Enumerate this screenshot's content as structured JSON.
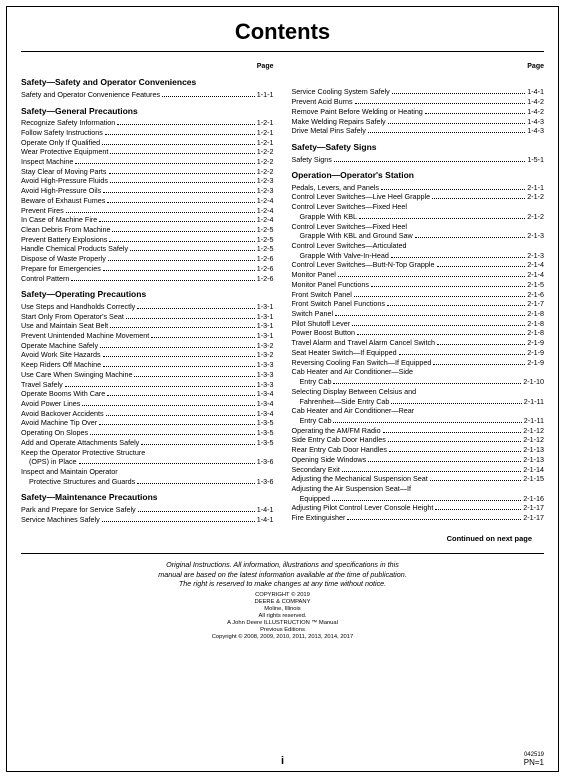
{
  "title": "Contents",
  "pageHeaderLabel": "Page",
  "continuedNote": "Continued on next page",
  "legal": [
    "Original Instructions. All information, illustrations and specifications in this",
    "manual are based on the latest information available at the time of publication.",
    "The right is reserved to make changes at any time without notice."
  ],
  "copyright": [
    "COPYRIGHT © 2019",
    "DEERE & COMPANY",
    "Moline, Illinois",
    "All rights reserved.",
    "A John Deere ILLUSTRUCTION ™ Manual",
    "Previous Editions",
    "Copyright © 2008, 2009, 2010, 2011, 2013, 2014, 2017"
  ],
  "footer": {
    "center": "i",
    "right_top": "042519",
    "right_pn": "PN=1"
  },
  "leftColumn": [
    {
      "type": "head",
      "text": "Safety—Safety and Operator Conveniences"
    },
    {
      "type": "entry",
      "label": "Safety and Operator Convenience Features",
      "page": "1-1-1"
    },
    {
      "type": "head",
      "text": "Safety—General Precautions"
    },
    {
      "type": "entry",
      "label": "Recognize Safety Information",
      "page": "1-2-1"
    },
    {
      "type": "entry",
      "label": "Follow Safety Instructions",
      "page": "1-2-1"
    },
    {
      "type": "entry",
      "label": "Operate Only If Qualified",
      "page": "1-2-1"
    },
    {
      "type": "entry",
      "label": "Wear Protective Equipment",
      "page": "1-2-2"
    },
    {
      "type": "entry",
      "label": "Inspect Machine",
      "page": "1-2-2"
    },
    {
      "type": "entry",
      "label": "Stay Clear of Moving Parts",
      "page": "1-2-2"
    },
    {
      "type": "entry",
      "label": "Avoid High-Pressure Fluids",
      "page": "1-2-3"
    },
    {
      "type": "entry",
      "label": "Avoid High-Pressure Oils",
      "page": "1-2-3"
    },
    {
      "type": "entry",
      "label": "Beware of Exhaust Fumes",
      "page": "1-2-4"
    },
    {
      "type": "entry",
      "label": "Prevent Fires",
      "page": "1-2-4"
    },
    {
      "type": "entry",
      "label": "In Case of Machine Fire",
      "page": "1-2-4"
    },
    {
      "type": "entry",
      "label": "Clean Debris From Machine",
      "page": "1-2-5"
    },
    {
      "type": "entry",
      "label": "Prevent Battery Explosions",
      "page": "1-2-5"
    },
    {
      "type": "entry",
      "label": "Handle Chemical Products Safely",
      "page": "1-2-5"
    },
    {
      "type": "entry",
      "label": "Dispose of Waste Properly",
      "page": "1-2-6"
    },
    {
      "type": "entry",
      "label": "Prepare for Emergencies",
      "page": "1-2-6"
    },
    {
      "type": "entry",
      "label": "Control Pattern",
      "page": "1-2-6"
    },
    {
      "type": "head",
      "text": "Safety—Operating Precautions"
    },
    {
      "type": "entry",
      "label": "Use Steps and Handholds Correctly",
      "page": "1-3-1"
    },
    {
      "type": "entry",
      "label": "Start Only From Operator's Seat",
      "page": "1-3-1"
    },
    {
      "type": "entry",
      "label": "Use and Maintain Seat Belt",
      "page": "1-3-1"
    },
    {
      "type": "entry",
      "label": "Prevent Unintended Machine Movement",
      "page": "1-3-1"
    },
    {
      "type": "entry",
      "label": "Operate Machine Safely",
      "page": "1-3-2"
    },
    {
      "type": "entry",
      "label": "Avoid Work Site Hazards",
      "page": "1-3-2"
    },
    {
      "type": "entry",
      "label": "Keep Riders Off Machine",
      "page": "1-3-3"
    },
    {
      "type": "entry",
      "label": "Use Care When Swinging Machine",
      "page": "1-3-3"
    },
    {
      "type": "entry",
      "label": "Travel Safely",
      "page": "1-3-3"
    },
    {
      "type": "entry",
      "label": "Operate Booms With Care",
      "page": "1-3-4"
    },
    {
      "type": "entry",
      "label": "Avoid Power Lines",
      "page": "1-3-4"
    },
    {
      "type": "entry",
      "label": "Avoid Backover Accidents",
      "page": "1-3-4"
    },
    {
      "type": "entry",
      "label": "Avoid Machine Tip Over",
      "page": "1-3-5"
    },
    {
      "type": "entry",
      "label": "Operating On Slopes",
      "page": "1-3-5"
    },
    {
      "type": "entry",
      "label": "Add and Operate Attachments Safely",
      "page": "1-3-5"
    },
    {
      "type": "plain",
      "label": "Keep the Operator Protective Structure"
    },
    {
      "type": "entry",
      "indent": true,
      "label": "(OPS) in Place",
      "page": "1-3-6"
    },
    {
      "type": "plain",
      "label": "Inspect and Maintain Operator"
    },
    {
      "type": "entry",
      "indent": true,
      "label": "Protective Structures and Guards",
      "page": "1-3-6"
    },
    {
      "type": "head",
      "text": "Safety—Maintenance Precautions"
    },
    {
      "type": "entry",
      "label": "Park and Prepare for Service Safely",
      "page": "1-4-1"
    },
    {
      "type": "entry",
      "label": "Service Machines Safely",
      "page": "1-4-1"
    }
  ],
  "rightColumn": [
    {
      "type": "spacer"
    },
    {
      "type": "entry",
      "label": "Service Cooling System Safely",
      "page": "1-4-1"
    },
    {
      "type": "entry",
      "label": "Prevent Acid Burns",
      "page": "1-4-2"
    },
    {
      "type": "entry",
      "label": "Remove Paint Before Welding or Heating",
      "page": "1-4-2"
    },
    {
      "type": "entry",
      "label": "Make Welding Repairs Safely",
      "page": "1-4-3"
    },
    {
      "type": "entry",
      "label": "Drive Metal Pins Safely",
      "page": "1-4-3"
    },
    {
      "type": "head",
      "text": "Safety—Safety Signs"
    },
    {
      "type": "entry",
      "label": "Safety Signs",
      "page": "1-5-1"
    },
    {
      "type": "head",
      "text": "Operation—Operator's Station"
    },
    {
      "type": "entry",
      "label": "Pedals, Levers, and Panels",
      "page": "2-1-1"
    },
    {
      "type": "entry",
      "label": "Control Lever Switches—Live Heel Grapple",
      "page": "2-1-2"
    },
    {
      "type": "plain",
      "label": "Control Lever Switches—Fixed Heel"
    },
    {
      "type": "entry",
      "indent": true,
      "label": "Grapple With KBL",
      "page": "2-1-2"
    },
    {
      "type": "plain",
      "label": "Control Lever Switches—Fixed Heel"
    },
    {
      "type": "entry",
      "indent": true,
      "label": "Grapple With KBL and Ground Saw",
      "page": "2-1-3"
    },
    {
      "type": "plain",
      "label": "Control Lever Switches—Articulated"
    },
    {
      "type": "entry",
      "indent": true,
      "label": "Grapple With Valve-In-Head",
      "page": "2-1-3"
    },
    {
      "type": "entry",
      "label": "Control Lever Switches—Butt-N-Top Grapple",
      "page": "2-1-4"
    },
    {
      "type": "entry",
      "label": "Monitor Panel",
      "page": "2-1-4"
    },
    {
      "type": "entry",
      "label": "Monitor Panel Functions",
      "page": "2-1-5"
    },
    {
      "type": "entry",
      "label": "Front Switch Panel",
      "page": "2-1-6"
    },
    {
      "type": "entry",
      "label": "Front Switch Panel Functions",
      "page": "2-1-7"
    },
    {
      "type": "entry",
      "label": "Switch Panel",
      "page": "2-1-8"
    },
    {
      "type": "entry",
      "label": "Pilot Shutoff Lever",
      "page": "2-1-8"
    },
    {
      "type": "entry",
      "label": "Power Boost Button",
      "page": "2-1-8"
    },
    {
      "type": "entry",
      "label": "Travel Alarm and Travel Alarm Cancel Switch",
      "page": "2-1-9"
    },
    {
      "type": "entry",
      "label": "Seat Heater Switch—If Equipped",
      "page": "2-1-9"
    },
    {
      "type": "entry",
      "label": "Reversing Cooling Fan Switch—If Equipped",
      "page": "2-1-9"
    },
    {
      "type": "plain",
      "label": "Cab Heater and Air Conditioner—Side"
    },
    {
      "type": "entry",
      "indent": true,
      "label": "Entry Cab",
      "page": "2-1-10"
    },
    {
      "type": "plain",
      "label": "Selecting Display Between Celsius and"
    },
    {
      "type": "entry",
      "indent": true,
      "label": "Fahrenheit—Side Entry Cab",
      "page": "2-1-11"
    },
    {
      "type": "plain",
      "label": "Cab Heater and Air Conditioner—Rear"
    },
    {
      "type": "entry",
      "indent": true,
      "label": "Entry Cab",
      "page": "2-1-11"
    },
    {
      "type": "entry",
      "label": "Operating the AM/FM Radio",
      "page": "2-1-12"
    },
    {
      "type": "entry",
      "label": "Side Entry Cab Door Handles",
      "page": "2-1-12"
    },
    {
      "type": "entry",
      "label": "Rear Entry Cab Door Handles",
      "page": "2-1-13"
    },
    {
      "type": "entry",
      "label": "Opening Side Windows",
      "page": "2-1-13"
    },
    {
      "type": "entry",
      "label": "Secondary Exit",
      "page": "2-1-14"
    },
    {
      "type": "entry",
      "label": "Adjusting the Mechanical Suspension Seat",
      "page": "2-1-15"
    },
    {
      "type": "plain",
      "label": "Adjusting the Air Suspension Seat—If"
    },
    {
      "type": "entry",
      "indent": true,
      "label": "Equipped",
      "page": "2-1-16"
    },
    {
      "type": "entry",
      "label": "Adjusting Pilot Control Lever Console Height",
      "page": "2-1-17"
    },
    {
      "type": "entry",
      "label": "Fire Extinguisher",
      "page": "2-1-17"
    }
  ]
}
